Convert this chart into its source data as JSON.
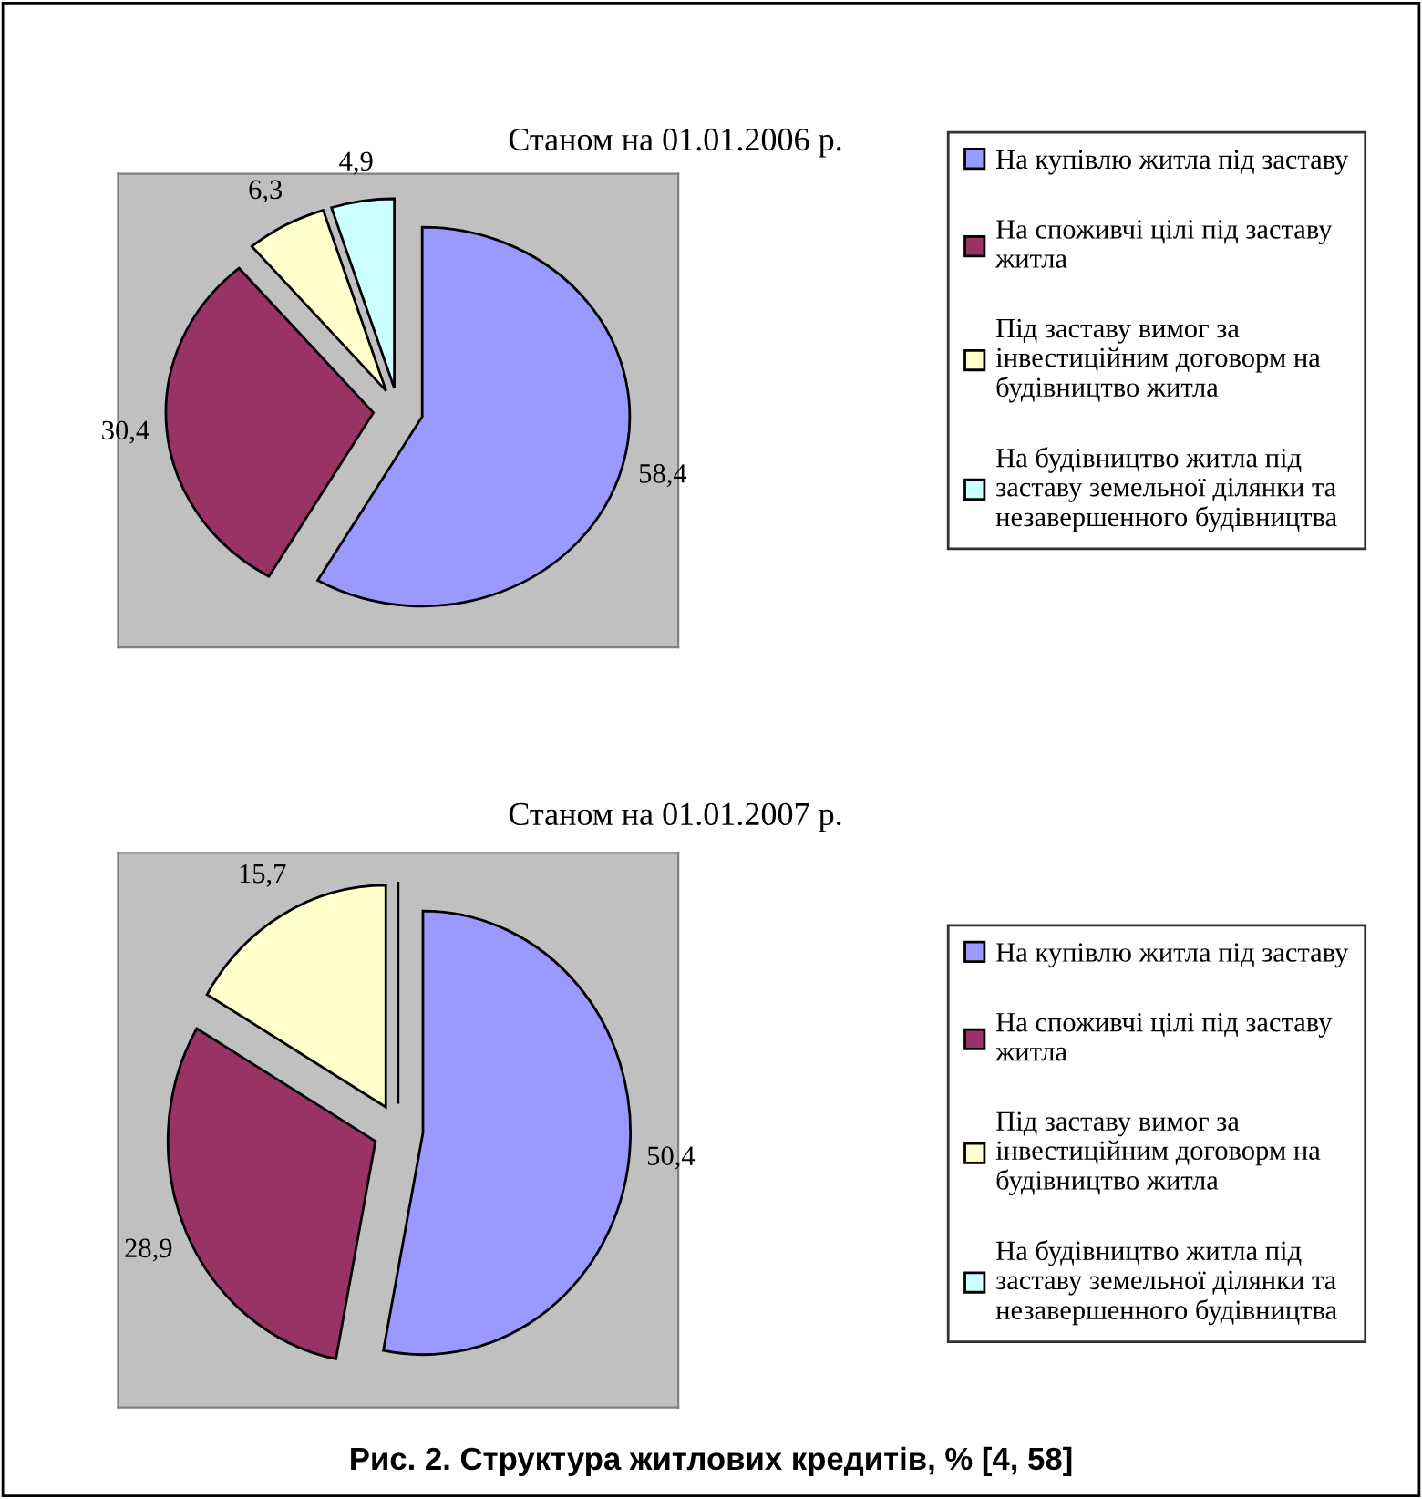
{
  "chart_data": [
    {
      "type": "pie",
      "title": "Станом на 01.01.2006 р.",
      "categories": [
        "На купівлю житла під заставу",
        "На споживчі цілі під заставу\nжитла",
        "Під заставу вимог за\nінвестиційним договорм на\nбудівництво житла",
        "На будівництво житла під\nзаставу земельної ділянки та\nнезавершенного будівництва"
      ],
      "values": [
        58.4,
        30.4,
        6.3,
        4.9
      ],
      "value_labels": [
        "58,4",
        "30,4",
        "6,3",
        "4,9"
      ],
      "colors": [
        "#9999ff",
        "#993366",
        "#ffffcc",
        "#ccffff"
      ],
      "legend": "right"
    },
    {
      "type": "pie",
      "title": "Станом на 01.01.2007 р.",
      "categories": [
        "На купівлю житла під заставу",
        "На споживчі цілі під заставу\nжитла",
        "Під заставу вимог за\nінвестиційним договорм на\nбудівництво житла",
        "На будівництво житла під\nзаставу земельної ділянки та\nнезавершенного будівництва"
      ],
      "values": [
        50.4,
        28.9,
        15.7,
        0
      ],
      "value_labels": [
        "50,4",
        "28,9",
        "15,7",
        null
      ],
      "colors": [
        "#9999ff",
        "#993366",
        "#ffffcc",
        "#ccffff"
      ],
      "legend": "right",
      "annotations": [
        "Рис. 2. Структура житлових кредитів, % [4, 58]"
      ]
    }
  ]
}
